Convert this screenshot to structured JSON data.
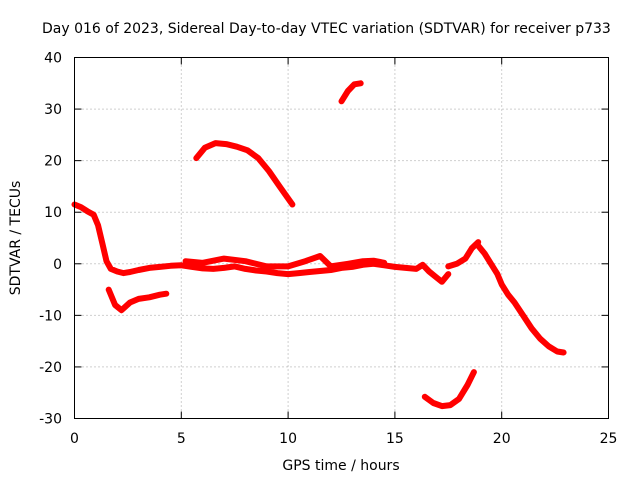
{
  "chart_data": {
    "type": "line",
    "title": "Day 016 of 2023, Sidereal Day-to-day VTEC variation (SDTVAR) for receiver p733",
    "xlabel": "GPS time / hours",
    "ylabel": "SDTVAR / TECUs",
    "xlim": [
      0,
      25
    ],
    "ylim": [
      -30,
      40
    ],
    "xticks": [
      0,
      5,
      10,
      15,
      20,
      25
    ],
    "yticks": [
      -30,
      -20,
      -10,
      0,
      10,
      20,
      30,
      40
    ],
    "xtick_labels": [
      "0",
      "5",
      "10",
      "15",
      "20",
      "25"
    ],
    "ytick_labels": [
      "-30",
      "-20",
      "-10",
      "0",
      "10",
      "20",
      "30",
      "40"
    ],
    "grid": true,
    "legend": "none",
    "color": "#ff0000",
    "series": [
      {
        "name": "arc-main",
        "x": [
          0.0,
          0.3,
          0.6,
          0.9,
          1.1,
          1.3,
          1.5,
          1.7,
          2.0,
          2.3,
          2.6,
          3.0,
          3.5,
          4.0,
          4.5,
          5.0,
          5.5,
          6.0,
          6.5,
          7.0,
          7.5,
          8.0,
          8.5,
          9.0,
          9.5,
          10.0,
          10.5,
          11.0,
          11.5,
          12.0,
          12.5,
          13.0,
          13.5,
          14.0,
          14.5,
          15.0,
          15.5,
          16.0,
          16.3,
          16.6,
          16.9,
          17.2,
          17.5
        ],
        "y": [
          11.5,
          11.0,
          10.2,
          9.5,
          7.5,
          4.0,
          0.5,
          -1.0,
          -1.5,
          -1.8,
          -1.6,
          -1.2,
          -0.8,
          -0.6,
          -0.4,
          -0.3,
          -0.6,
          -0.9,
          -1.0,
          -0.8,
          -0.5,
          -1.0,
          -1.3,
          -1.5,
          -1.8,
          -2.0,
          -1.8,
          -1.6,
          -1.4,
          -1.2,
          -0.8,
          -0.6,
          -0.2,
          0.0,
          -0.3,
          -0.6,
          -0.8,
          -1.0,
          -0.2,
          -1.5,
          -2.5,
          -3.5,
          -2.0
        ]
      },
      {
        "name": "arc-main-upper",
        "x": [
          5.2,
          6.0,
          7.0,
          8.0,
          9.0,
          10.0,
          10.8,
          11.5,
          12.0,
          12.8,
          13.5,
          14.0,
          14.5
        ],
        "y": [
          0.5,
          0.2,
          1.0,
          0.5,
          -0.5,
          -0.5,
          0.5,
          1.5,
          -0.5,
          0.0,
          0.5,
          0.6,
          0.2
        ]
      },
      {
        "name": "arc-low-left",
        "x": [
          1.6,
          1.9,
          2.2,
          2.6,
          3.0,
          3.5,
          4.0,
          4.3
        ],
        "y": [
          -5.0,
          -8.0,
          -9.0,
          -7.5,
          -6.8,
          -6.5,
          -6.0,
          -5.8
        ]
      },
      {
        "name": "arc-mid-high",
        "x": [
          5.7,
          6.1,
          6.6,
          7.1,
          7.6,
          8.1,
          8.6,
          9.1,
          9.6,
          10.2
        ],
        "y": [
          20.5,
          22.5,
          23.4,
          23.2,
          22.7,
          22.0,
          20.5,
          18.0,
          15.0,
          11.5
        ]
      },
      {
        "name": "arc-top",
        "x": [
          12.5,
          12.8,
          13.1,
          13.4
        ],
        "y": [
          31.5,
          33.5,
          34.8,
          35.0
        ]
      },
      {
        "name": "arc-bottom",
        "x": [
          16.4,
          16.8,
          17.2,
          17.6,
          18.0,
          18.4,
          18.7
        ],
        "y": [
          -25.8,
          -27.0,
          -27.6,
          -27.4,
          -26.2,
          -23.5,
          -21.0
        ]
      },
      {
        "name": "arc-rise",
        "x": [
          17.5,
          17.9,
          18.3,
          18.6,
          18.9
        ],
        "y": [
          -0.5,
          0.0,
          1.0,
          3.0,
          4.2
        ]
      },
      {
        "name": "arc-right-descend",
        "x": [
          18.9,
          19.2,
          19.5,
          19.8,
          20.0,
          20.3,
          20.6,
          21.0,
          21.4,
          21.8,
          22.2,
          22.6,
          22.9
        ],
        "y": [
          3.5,
          2.0,
          0.0,
          -2.0,
          -4.0,
          -6.0,
          -7.5,
          -10.0,
          -12.5,
          -14.5,
          -16.0,
          -17.0,
          -17.2
        ]
      }
    ]
  }
}
